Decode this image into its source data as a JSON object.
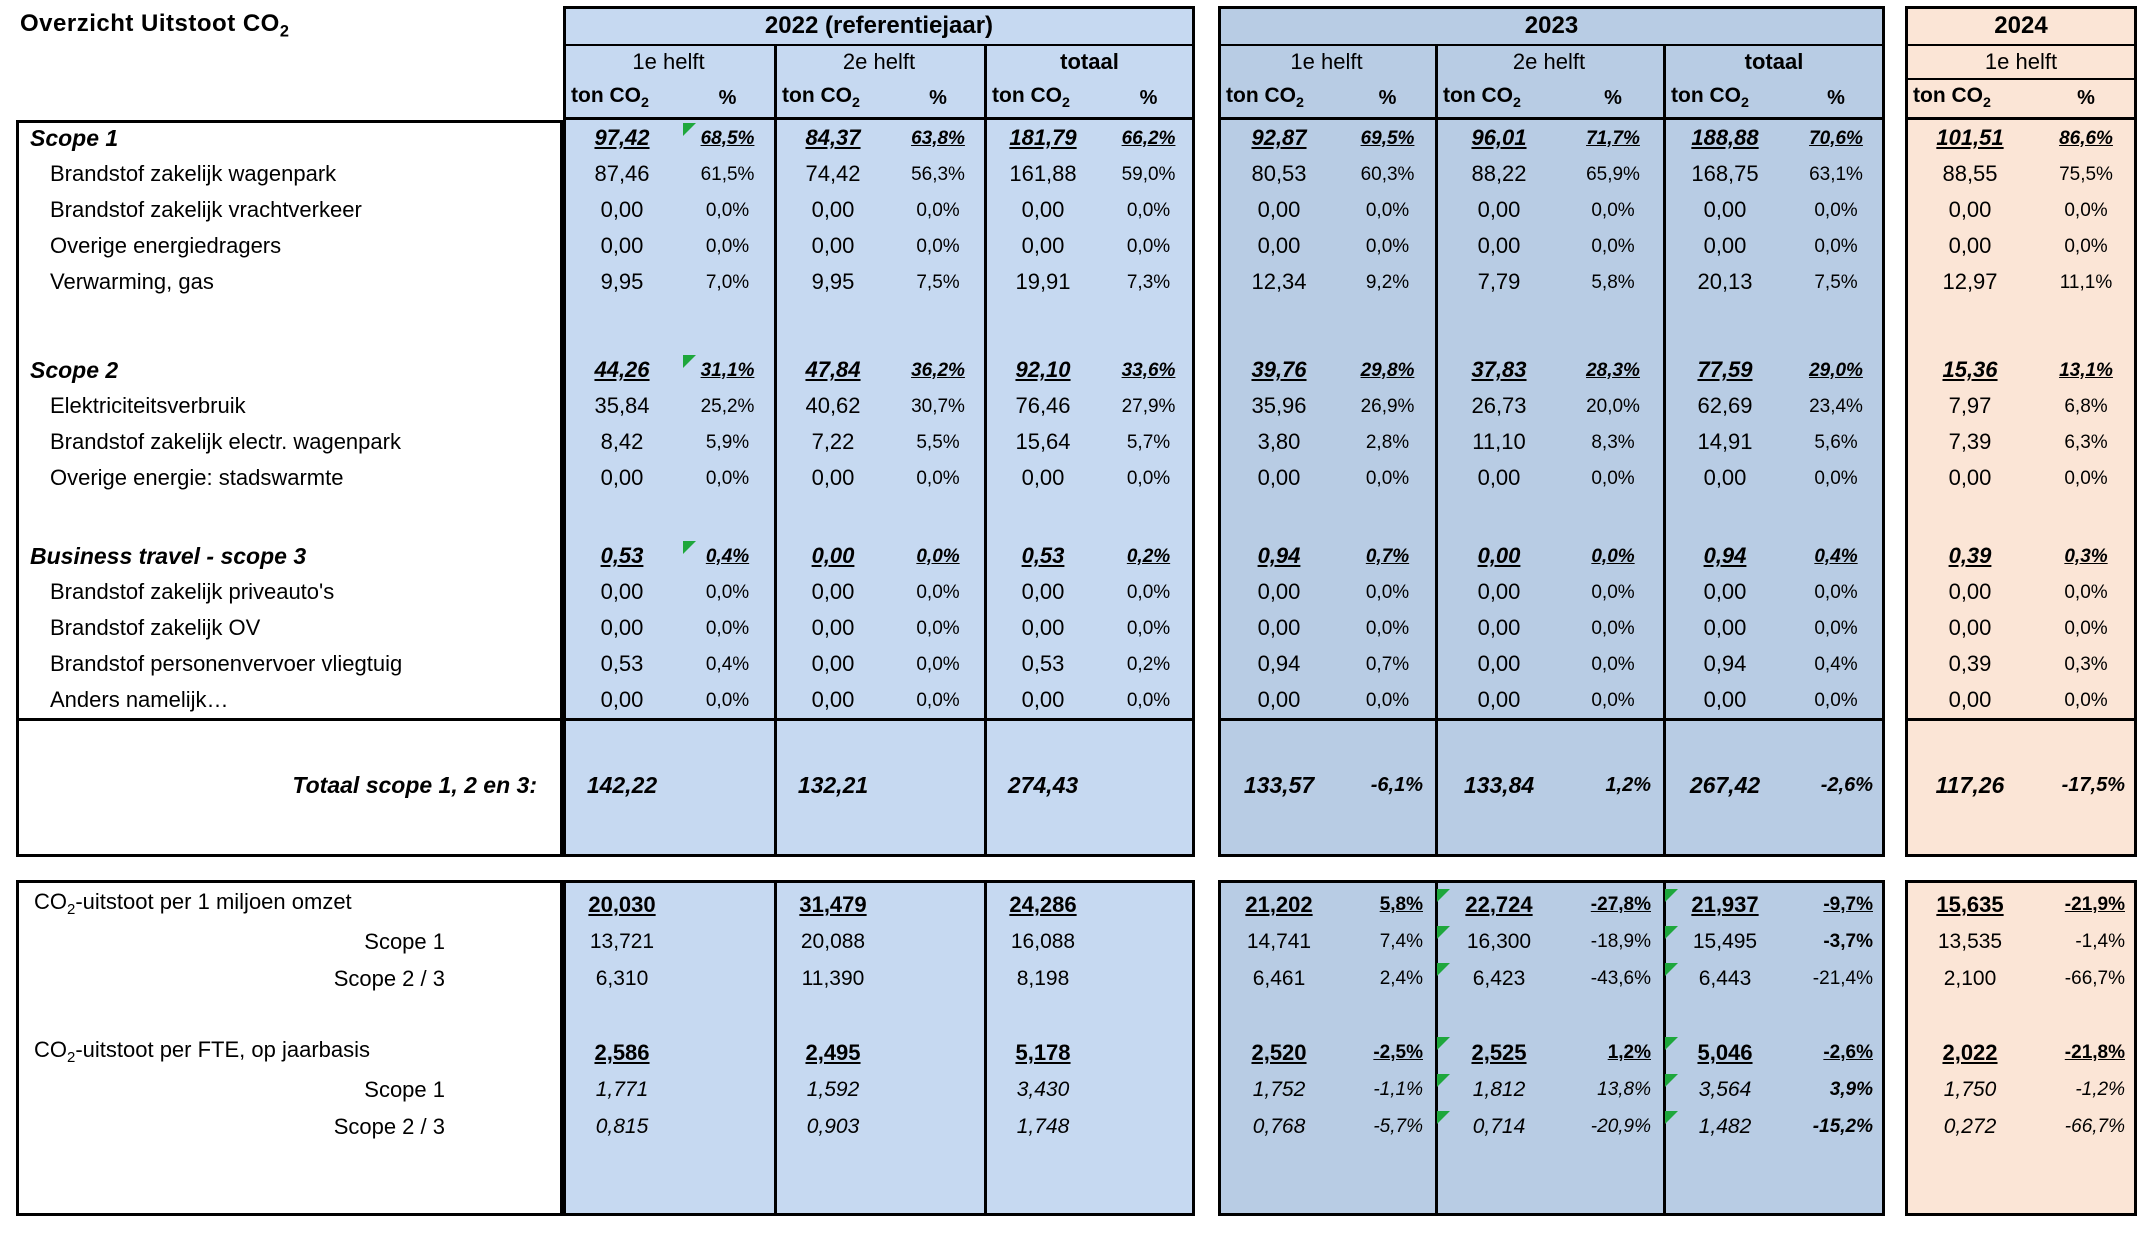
{
  "title": {
    "main": "Overzicht Uitstoot CO",
    "sub": "2"
  },
  "colors": {
    "fill_2022": "#C6D9F1",
    "fill_2023": "#B8CCE4",
    "fill_2024": "#FBE5D6",
    "border": "#000000",
    "marker_green": "#1EA73C",
    "background": "#FFFFFF"
  },
  "headers": {
    "year_2022": "2022 (referentiejaar)",
    "year_2023": "2023",
    "year_2024": "2024",
    "first_half": "1e helft",
    "second_half": "2e helft",
    "total": "totaal",
    "ton_main": "ton CO",
    "ton_sub": "2",
    "pct": "%"
  },
  "top_table": {
    "rows": [
      {
        "id": "scope1",
        "label": "Scope 1",
        "style": "head",
        "markers": [
          1
        ],
        "cells": [
          "97,42",
          "68,5%",
          "84,37",
          "63,8%",
          "181,79",
          "66,2%",
          "92,87",
          "69,5%",
          "96,01",
          "71,7%",
          "188,88",
          "70,6%",
          "101,51",
          "86,6%"
        ]
      },
      {
        "id": "wagenpark",
        "label": "Brandstof zakelijk wagenpark",
        "style": "sub",
        "cells": [
          "87,46",
          "61,5%",
          "74,42",
          "56,3%",
          "161,88",
          "59,0%",
          "80,53",
          "60,3%",
          "88,22",
          "65,9%",
          "168,75",
          "63,1%",
          "88,55",
          "75,5%"
        ]
      },
      {
        "id": "vrachtverkeer",
        "label": "Brandstof zakelijk vrachtverkeer",
        "style": "sub",
        "cells": [
          "0,00",
          "0,0%",
          "0,00",
          "0,0%",
          "0,00",
          "0,0%",
          "0,00",
          "0,0%",
          "0,00",
          "0,0%",
          "0,00",
          "0,0%",
          "0,00",
          "0,0%"
        ]
      },
      {
        "id": "energiedragers",
        "label": "Overige energiedragers",
        "style": "sub",
        "cells": [
          "0,00",
          "0,0%",
          "0,00",
          "0,0%",
          "0,00",
          "0,0%",
          "0,00",
          "0,0%",
          "0,00",
          "0,0%",
          "0,00",
          "0,0%",
          "0,00",
          "0,0%"
        ]
      },
      {
        "id": "verwarming-gas",
        "label": "Verwarming, gas",
        "style": "sub",
        "cells": [
          "9,95",
          "7,0%",
          "9,95",
          "7,5%",
          "19,91",
          "7,3%",
          "12,34",
          "9,2%",
          "7,79",
          "5,8%",
          "20,13",
          "7,5%",
          "12,97",
          "11,1%"
        ]
      },
      {
        "id": "blank1",
        "style": "blank",
        "h": 52
      },
      {
        "id": "scope2",
        "label": "Scope 2",
        "style": "head",
        "markers": [
          1
        ],
        "cells": [
          "44,26",
          "31,1%",
          "47,84",
          "36,2%",
          "92,10",
          "33,6%",
          "39,76",
          "29,8%",
          "37,83",
          "28,3%",
          "77,59",
          "29,0%",
          "15,36",
          "13,1%"
        ]
      },
      {
        "id": "elektriciteitsverbruik",
        "label": "Elektriciteitsverbruik",
        "style": "sub",
        "cells": [
          "35,84",
          "25,2%",
          "40,62",
          "30,7%",
          "76,46",
          "27,9%",
          "35,96",
          "26,9%",
          "26,73",
          "20,0%",
          "62,69",
          "23,4%",
          "7,97",
          "6,8%"
        ]
      },
      {
        "id": "electr-wagenpark",
        "label": "Brandstof zakelijk electr. wagenpark",
        "style": "sub",
        "cells": [
          "8,42",
          "5,9%",
          "7,22",
          "5,5%",
          "15,64",
          "5,7%",
          "3,80",
          "2,8%",
          "11,10",
          "8,3%",
          "14,91",
          "5,6%",
          "7,39",
          "6,3%"
        ]
      },
      {
        "id": "stadswarmte",
        "label": "Overige energie: stadswarmte",
        "style": "sub",
        "cells": [
          "0,00",
          "0,0%",
          "0,00",
          "0,0%",
          "0,00",
          "0,0%",
          "0,00",
          "0,0%",
          "0,00",
          "0,0%",
          "0,00",
          "0,0%",
          "0,00",
          "0,0%"
        ]
      },
      {
        "id": "blank2",
        "style": "blank",
        "h": 42
      },
      {
        "id": "business-travel",
        "label": "Business travel - scope 3",
        "style": "head",
        "markers": [
          1
        ],
        "cells": [
          "0,53",
          "0,4%",
          "0,00",
          "0,0%",
          "0,53",
          "0,2%",
          "0,94",
          "0,7%",
          "0,00",
          "0,0%",
          "0,94",
          "0,4%",
          "0,39",
          "0,3%"
        ]
      },
      {
        "id": "priveautos",
        "label": "Brandstof zakelijk priveauto's",
        "style": "sub",
        "cells": [
          "0,00",
          "0,0%",
          "0,00",
          "0,0%",
          "0,00",
          "0,0%",
          "0,00",
          "0,0%",
          "0,00",
          "0,0%",
          "0,00",
          "0,0%",
          "0,00",
          "0,0%"
        ]
      },
      {
        "id": "ov",
        "label": "Brandstof zakelijk OV",
        "style": "sub",
        "cells": [
          "0,00",
          "0,0%",
          "0,00",
          "0,0%",
          "0,00",
          "0,0%",
          "0,00",
          "0,0%",
          "0,00",
          "0,0%",
          "0,00",
          "0,0%",
          "0,00",
          "0,0%"
        ]
      },
      {
        "id": "vliegtuig",
        "label": "Brandstof personenvervoer vliegtuig",
        "style": "sub",
        "cells": [
          "0,53",
          "0,4%",
          "0,00",
          "0,0%",
          "0,53",
          "0,2%",
          "0,94",
          "0,7%",
          "0,00",
          "0,0%",
          "0,94",
          "0,4%",
          "0,39",
          "0,3%"
        ]
      },
      {
        "id": "anders",
        "label": "Anders namelijk…",
        "style": "sub",
        "cells": [
          "0,00",
          "0,0%",
          "0,00",
          "0,0%",
          "0,00",
          "0,0%",
          "0,00",
          "0,0%",
          "0,00",
          "0,0%",
          "0,00",
          "0,0%",
          "0,00",
          "0,0%"
        ]
      }
    ],
    "total_row": {
      "id": "totaal",
      "label": "Totaal scope 1, 2 en 3:",
      "cells": [
        "142,22",
        "",
        "132,21",
        "",
        "274,43",
        "",
        "133,57",
        "-6,1%",
        "133,84",
        "1,2%",
        "267,42",
        "-2,6%",
        "117,26",
        "-17,5%"
      ]
    }
  },
  "bottom_table": {
    "rows": [
      {
        "id": "omzet",
        "label_pre": "CO",
        "label_sub": "2",
        "label_post": "-uitstoot per 1 miljoen omzet",
        "style": "sum",
        "markers": [
          8,
          10
        ],
        "cells": [
          "20,030",
          "",
          "31,479",
          "",
          "24,286",
          "",
          "21,202",
          "5,8%",
          "22,724",
          "-27,8%",
          "21,937",
          "-9,7%",
          "15,635",
          "-21,9%"
        ]
      },
      {
        "id": "omzet-scope1",
        "label": "Scope 1",
        "style": "sub",
        "markers": [
          8,
          10
        ],
        "bold": [
          11
        ],
        "cells": [
          "13,721",
          "",
          "20,088",
          "",
          "16,088",
          "",
          "14,741",
          "7,4%",
          "16,300",
          "-18,9%",
          "15,495",
          "-3,7%",
          "13,535",
          "-1,4%"
        ]
      },
      {
        "id": "omzet-scope23",
        "label": "Scope 2 / 3",
        "style": "sub",
        "markers": [
          8,
          10
        ],
        "cells": [
          "6,310",
          "",
          "11,390",
          "",
          "8,198",
          "",
          "6,461",
          "2,4%",
          "6,423",
          "-43,6%",
          "6,443",
          "-21,4%",
          "2,100",
          "-66,7%"
        ]
      },
      {
        "id": "blank3",
        "style": "blank"
      },
      {
        "id": "fte",
        "label_pre": "CO",
        "label_sub": "2",
        "label_post": "-uitstoot per FTE, op jaarbasis",
        "style": "sum",
        "markers": [
          8,
          10
        ],
        "cells": [
          "2,586",
          "",
          "2,495",
          "",
          "5,178",
          "",
          "2,520",
          "-2,5%",
          "2,525",
          "1,2%",
          "5,046",
          "-2,6%",
          "2,022",
          "-21,8%"
        ]
      },
      {
        "id": "fte-scope1",
        "label": "Scope 1",
        "style": "sub-italic",
        "markers": [
          8,
          10
        ],
        "bold": [
          11
        ],
        "cells": [
          "1,771",
          "",
          "1,592",
          "",
          "3,430",
          "",
          "1,752",
          "-1,1%",
          "1,812",
          "13,8%",
          "3,564",
          "3,9%",
          "1,750",
          "-1,2%"
        ]
      },
      {
        "id": "fte-scope23",
        "label": "Scope 2 / 3",
        "style": "sub-italic",
        "markers": [
          8,
          10
        ],
        "bold": [
          11
        ],
        "cells": [
          "0,815",
          "",
          "0,903",
          "",
          "1,748",
          "",
          "0,768",
          "-5,7%",
          "0,714",
          "-20,9%",
          "1,482",
          "-15,2%",
          "0,272",
          "-66,7%"
        ]
      }
    ]
  }
}
